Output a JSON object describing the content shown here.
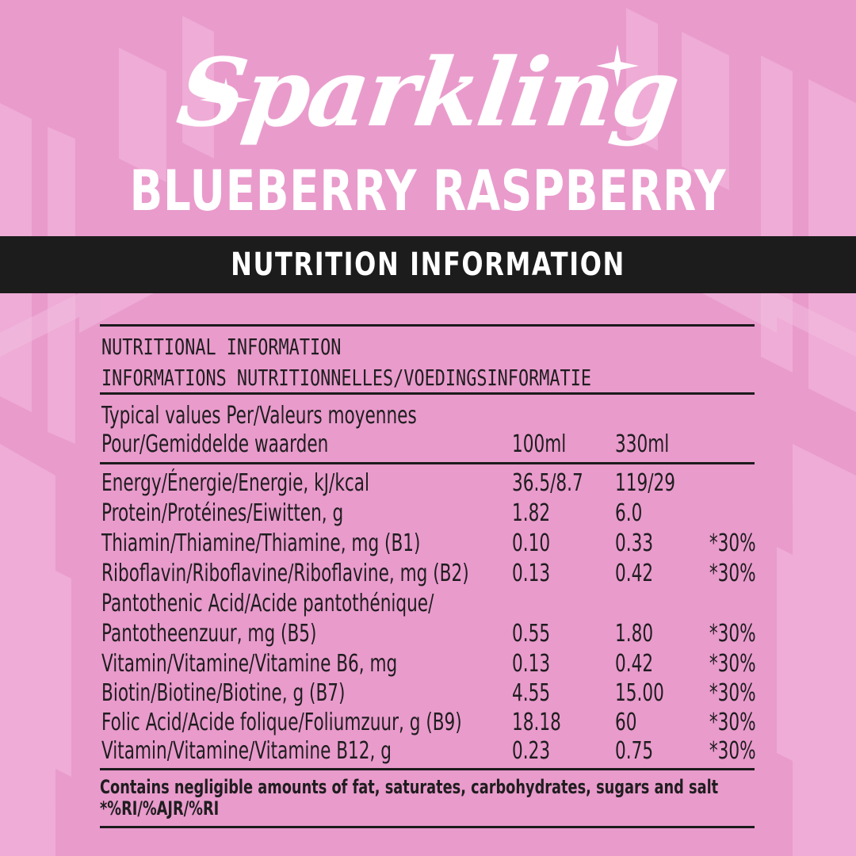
{
  "brand": {
    "name": "Sparkling",
    "flavor": "BLUEBERRY RASPBERRY",
    "banner": "NUTRITION INFORMATION",
    "colors": {
      "background": "#e99bcc",
      "pattern": "#f0b2da",
      "banner": "#1d1c1d",
      "text": "#1f1d1f",
      "title": "#ffffff"
    }
  },
  "table": {
    "heading_1": "NUTRITIONAL INFORMATION",
    "heading_2": "INFORMATIONS NUTRITIONNELLES/VOEDINGSINFORMATIE",
    "typical_line_1": "Typical values Per/Valeurs moyennes",
    "typical_line_2": "Pour/Gemiddelde waarden",
    "col_100": "100ml",
    "col_330": "330ml",
    "rows": [
      {
        "label": "Energy/Énergie/Energie, kJ/kcal",
        "v100": "36.5/8.7",
        "v330": "119/29",
        "ri": ""
      },
      {
        "label": "Protein/Protéines/Eiwitten, g",
        "v100": "1.82",
        "v330": "6.0",
        "ri": ""
      },
      {
        "label": "Thiamin/Thiamine/Thiamine, mg (B1)",
        "v100": "0.10",
        "v330": "0.33",
        "ri": "*30%"
      },
      {
        "label": "Riboflavin/Riboflavine/Riboflavine, mg (B2)",
        "v100": "0.13",
        "v330": "0.42",
        "ri": "*30%"
      },
      {
        "label_1": "Pantothenic Acid/Acide pantothénique/",
        "label": "Pantotheenzuur, mg (B5)",
        "v100": "0.55",
        "v330": "1.80",
        "ri": "*30%"
      },
      {
        "label": "Vitamin/Vitamine/Vitamine B6, mg",
        "v100": "0.13",
        "v330": "0.42",
        "ri": "*30%"
      },
      {
        "label": "Biotin/Biotine/Biotine, g (B7)",
        "v100": "4.55",
        "v330": "15.00",
        "ri": "*30%"
      },
      {
        "label": "Folic Acid/Acide folique/Foliumzuur, g (B9)",
        "v100": "18.18",
        "v330": "60",
        "ri": "*30%"
      },
      {
        "label": "Vitamin/Vitamine/Vitamine B12, g",
        "v100": "0.23",
        "v330": "0.75",
        "ri": "*30%"
      }
    ],
    "footnote_1": "Contains negligible amounts of fat, saturates, carbohydrates, sugars and salt",
    "footnote_2": "*%RI/%AJR/%RI"
  }
}
